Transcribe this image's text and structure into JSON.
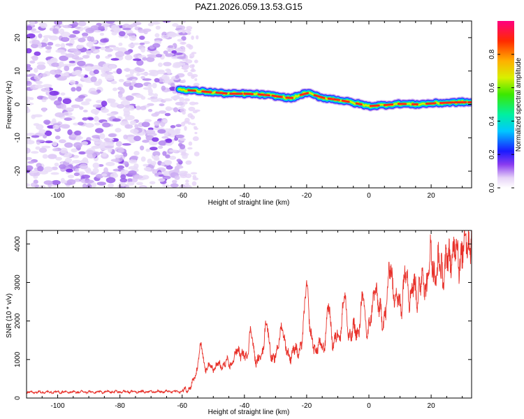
{
  "title": "PAZ1.2026.059.13.53.G15",
  "chart_data": [
    {
      "type": "heatmap",
      "name": "spectrogram",
      "xlabel": "Height of straight line (km)",
      "ylabel": "Frequency (Hz)",
      "xlim": [
        -110,
        33
      ],
      "ylim": [
        -25,
        25
      ],
      "xticks": [
        -100,
        -80,
        -60,
        -40,
        -20,
        0,
        20
      ],
      "xtick_labels": [
        "-100",
        "-80",
        "-60",
        "-40",
        "-20",
        "0",
        "20"
      ],
      "yticks": [
        -20,
        -10,
        0,
        10,
        20
      ],
      "ytick_labels": [
        "-20",
        "-10",
        "0",
        "10",
        "20"
      ],
      "noise_region": [
        -110,
        -60
      ],
      "signal_ridge": {
        "x": [
          -61,
          -55,
          -50,
          -45,
          -40,
          -35,
          -30,
          -25,
          -20,
          -15,
          -10,
          -5,
          0,
          5,
          10,
          15,
          20,
          25,
          30,
          33
        ],
        "y": [
          4.5,
          4,
          3.6,
          3.2,
          3.2,
          3,
          2.5,
          1.8,
          3.5,
          2,
          1.4,
          0.5,
          -0.5,
          -0.2,
          0.2,
          0,
          0.3,
          0.5,
          0.7,
          0.6
        ]
      },
      "colorbar": {
        "label": "Normalized spectral amplitude",
        "range": [
          0,
          1
        ],
        "ticks": [
          0.0,
          0.2,
          0.4,
          0.6,
          0.8
        ],
        "tick_labels": [
          "0.0",
          "0.2",
          "0.4",
          "0.6",
          "0.8"
        ]
      }
    },
    {
      "type": "line",
      "name": "snr",
      "xlabel": "Height of straight line (km)",
      "ylabel": "SNR (10 * v/v)",
      "xlim": [
        -110,
        33
      ],
      "ylim": [
        0,
        4350
      ],
      "xticks": [
        -100,
        -80,
        -60,
        -40,
        -20,
        0,
        20
      ],
      "xtick_labels": [
        "-100",
        "-80",
        "-60",
        "-40",
        "-20",
        "0",
        "20"
      ],
      "yticks": [
        0,
        1000,
        2000,
        3000,
        4000
      ],
      "ytick_labels": [
        "0",
        "1000",
        "2000",
        "3000",
        "4000"
      ],
      "color": "#e8312a",
      "series_trend": {
        "x": [
          -110,
          -60,
          -57,
          -55,
          -50,
          -45,
          -40,
          -35,
          -30,
          -25,
          -20,
          -15,
          -10,
          -5,
          0,
          5,
          10,
          15,
          20,
          25,
          30,
          33
        ],
        "y": [
          150,
          170,
          300,
          750,
          800,
          900,
          1050,
          1000,
          1100,
          1150,
          1400,
          1300,
          1550,
          1700,
          1800,
          2200,
          2550,
          2800,
          3200,
          3450,
          3800,
          3900
        ]
      },
      "peaks": [
        {
          "x": -54,
          "y": 1300
        },
        {
          "x": -42,
          "y": 1300
        },
        {
          "x": -38,
          "y": 1700
        },
        {
          "x": -33,
          "y": 2000
        },
        {
          "x": -28,
          "y": 1950
        },
        {
          "x": -20,
          "y": 3050
        },
        {
          "x": -13,
          "y": 2300
        },
        {
          "x": -8,
          "y": 2600
        },
        {
          "x": -2,
          "y": 2500
        },
        {
          "x": 2,
          "y": 3000
        },
        {
          "x": 7,
          "y": 3500
        },
        {
          "x": 12,
          "y": 3200
        },
        {
          "x": 20,
          "y": 3550
        },
        {
          "x": 27,
          "y": 3900
        },
        {
          "x": 32,
          "y": 4300
        }
      ]
    }
  ]
}
